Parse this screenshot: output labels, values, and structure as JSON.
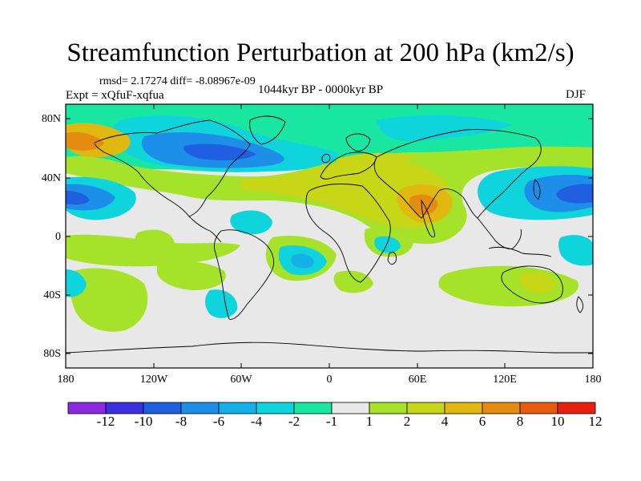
{
  "title": "Streamfunction Perturbation at 200 hPa (km2/s)",
  "stats": "rmsd= 2.17274 diff= -8.08967e-09",
  "experiment": "Expt = xQfuF-xqfua",
  "period": "1044kyr BP - 0000kyr BP",
  "season": "DJF",
  "lat_labels": [
    "80N",
    "40N",
    "0",
    "40S",
    "80S"
  ],
  "lon_labels": [
    "180",
    "120W",
    "60W",
    "0",
    "60E",
    "120E",
    "180"
  ],
  "colorbar": {
    "labels": [
      "-12",
      "-10",
      "-8",
      "-6",
      "-4",
      "-2",
      "-1",
      "1",
      "2",
      "4",
      "6",
      "8",
      "10",
      "12"
    ],
    "colors": [
      "#8a2be2",
      "#3b2fe0",
      "#1f5fe0",
      "#1e8fe8",
      "#14b0e8",
      "#10d4dc",
      "#19e6a0",
      "#e8e8e8",
      "#a6e22a",
      "#c8d618",
      "#e0b810",
      "#e48c10",
      "#e85a10",
      "#e81e10"
    ]
  }
}
